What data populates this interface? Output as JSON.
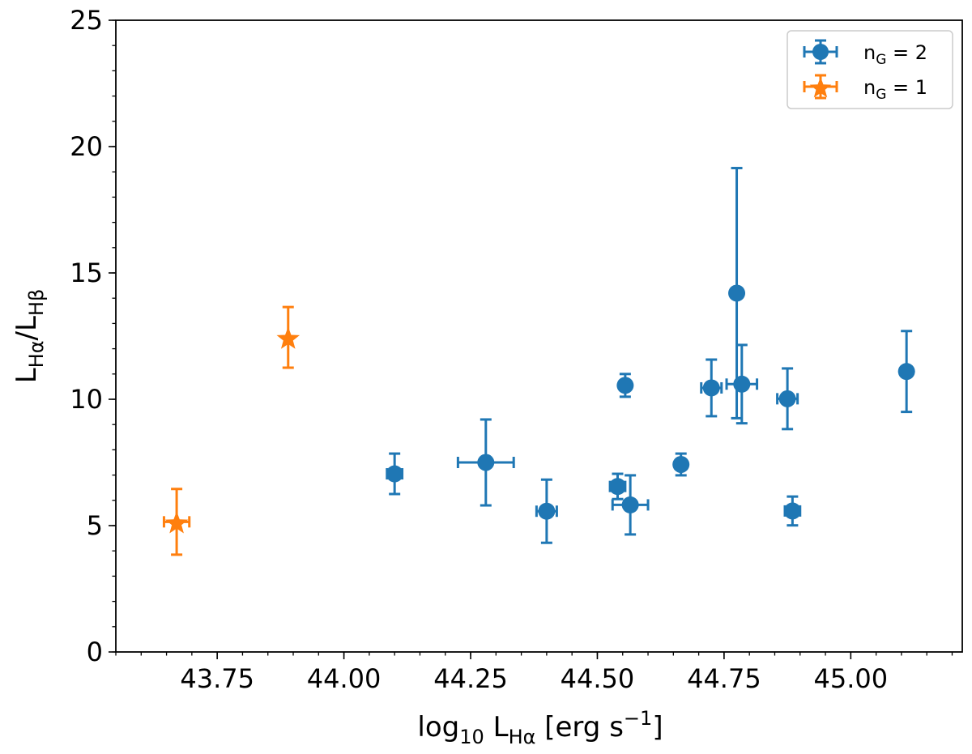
{
  "chart_data": {
    "type": "scatter",
    "title": "",
    "xlabel": {
      "prefix": "log",
      "sub": "10",
      "mid": " L",
      "sub2": "Hα",
      "suffix": " [erg s",
      "sup": "−1",
      "end": "]"
    },
    "ylabel": {
      "a": "L",
      "a_sub": "Hα",
      "slash": "/L",
      "b_sub": "Hβ"
    },
    "xlim": [
      43.55,
      45.22
    ],
    "ylim": [
      0,
      25
    ],
    "x_ticks": [
      43.75,
      44.0,
      44.25,
      44.5,
      44.75,
      45.0
    ],
    "x_tick_labels": [
      "43.75",
      "44.00",
      "44.25",
      "44.50",
      "44.75",
      "45.00"
    ],
    "y_ticks": [
      0,
      5,
      10,
      15,
      20,
      25
    ],
    "y_tick_labels": [
      "0",
      "5",
      "10",
      "15",
      "20",
      "25"
    ],
    "x_minor_step": 0.05,
    "y_minor_step": 1,
    "legend_position": "top-right",
    "series": [
      {
        "name": "nG = 2",
        "label_main": "n",
        "label_sub": "G",
        "label_rest": " = 2",
        "marker": "circle",
        "color": "#1f77b4",
        "points": [
          {
            "x": 44.1,
            "y": 7.05,
            "xerr": 0.015,
            "yerr_low": 0.8,
            "yerr_high": 0.8
          },
          {
            "x": 44.28,
            "y": 7.5,
            "xerr": 0.055,
            "yerr_low": 1.7,
            "yerr_high": 1.7
          },
          {
            "x": 44.4,
            "y": 5.57,
            "xerr": 0.02,
            "yerr_low": 1.25,
            "yerr_high": 1.25
          },
          {
            "x": 44.54,
            "y": 6.55,
            "xerr": 0.015,
            "yerr_low": 0.5,
            "yerr_high": 0.5
          },
          {
            "x": 44.555,
            "y": 10.55,
            "xerr": 0.0,
            "yerr_low": 0.45,
            "yerr_high": 0.45
          },
          {
            "x": 44.565,
            "y": 5.82,
            "xerr": 0.035,
            "yerr_low": 1.17,
            "yerr_high": 1.17
          },
          {
            "x": 44.665,
            "y": 7.42,
            "xerr": 0.0,
            "yerr_low": 0.43,
            "yerr_high": 0.43
          },
          {
            "x": 44.725,
            "y": 10.45,
            "xerr": 0.02,
            "yerr_low": 1.12,
            "yerr_high": 1.12
          },
          {
            "x": 44.775,
            "y": 14.2,
            "xerr": 0.01,
            "yerr_low": 4.95,
            "yerr_high": 4.95
          },
          {
            "x": 44.785,
            "y": 10.6,
            "xerr": 0.03,
            "yerr_low": 1.55,
            "yerr_high": 1.55
          },
          {
            "x": 44.875,
            "y": 10.02,
            "xerr": 0.02,
            "yerr_low": 1.2,
            "yerr_high": 1.2
          },
          {
            "x": 44.885,
            "y": 5.58,
            "xerr": 0.015,
            "yerr_low": 0.57,
            "yerr_high": 0.57
          },
          {
            "x": 45.11,
            "y": 11.1,
            "xerr": 0.0,
            "yerr_low": 1.6,
            "yerr_high": 1.6
          }
        ]
      },
      {
        "name": "nG = 1",
        "label_main": "n",
        "label_sub": "G",
        "label_rest": " = 1",
        "marker": "star",
        "color": "#ff7f0e",
        "points": [
          {
            "x": 43.67,
            "y": 5.15,
            "xerr": 0.025,
            "yerr_low": 1.3,
            "yerr_high": 1.3
          },
          {
            "x": 43.89,
            "y": 12.45,
            "xerr": 0.0,
            "yerr_low": 1.2,
            "yerr_high": 1.2
          }
        ]
      }
    ]
  }
}
